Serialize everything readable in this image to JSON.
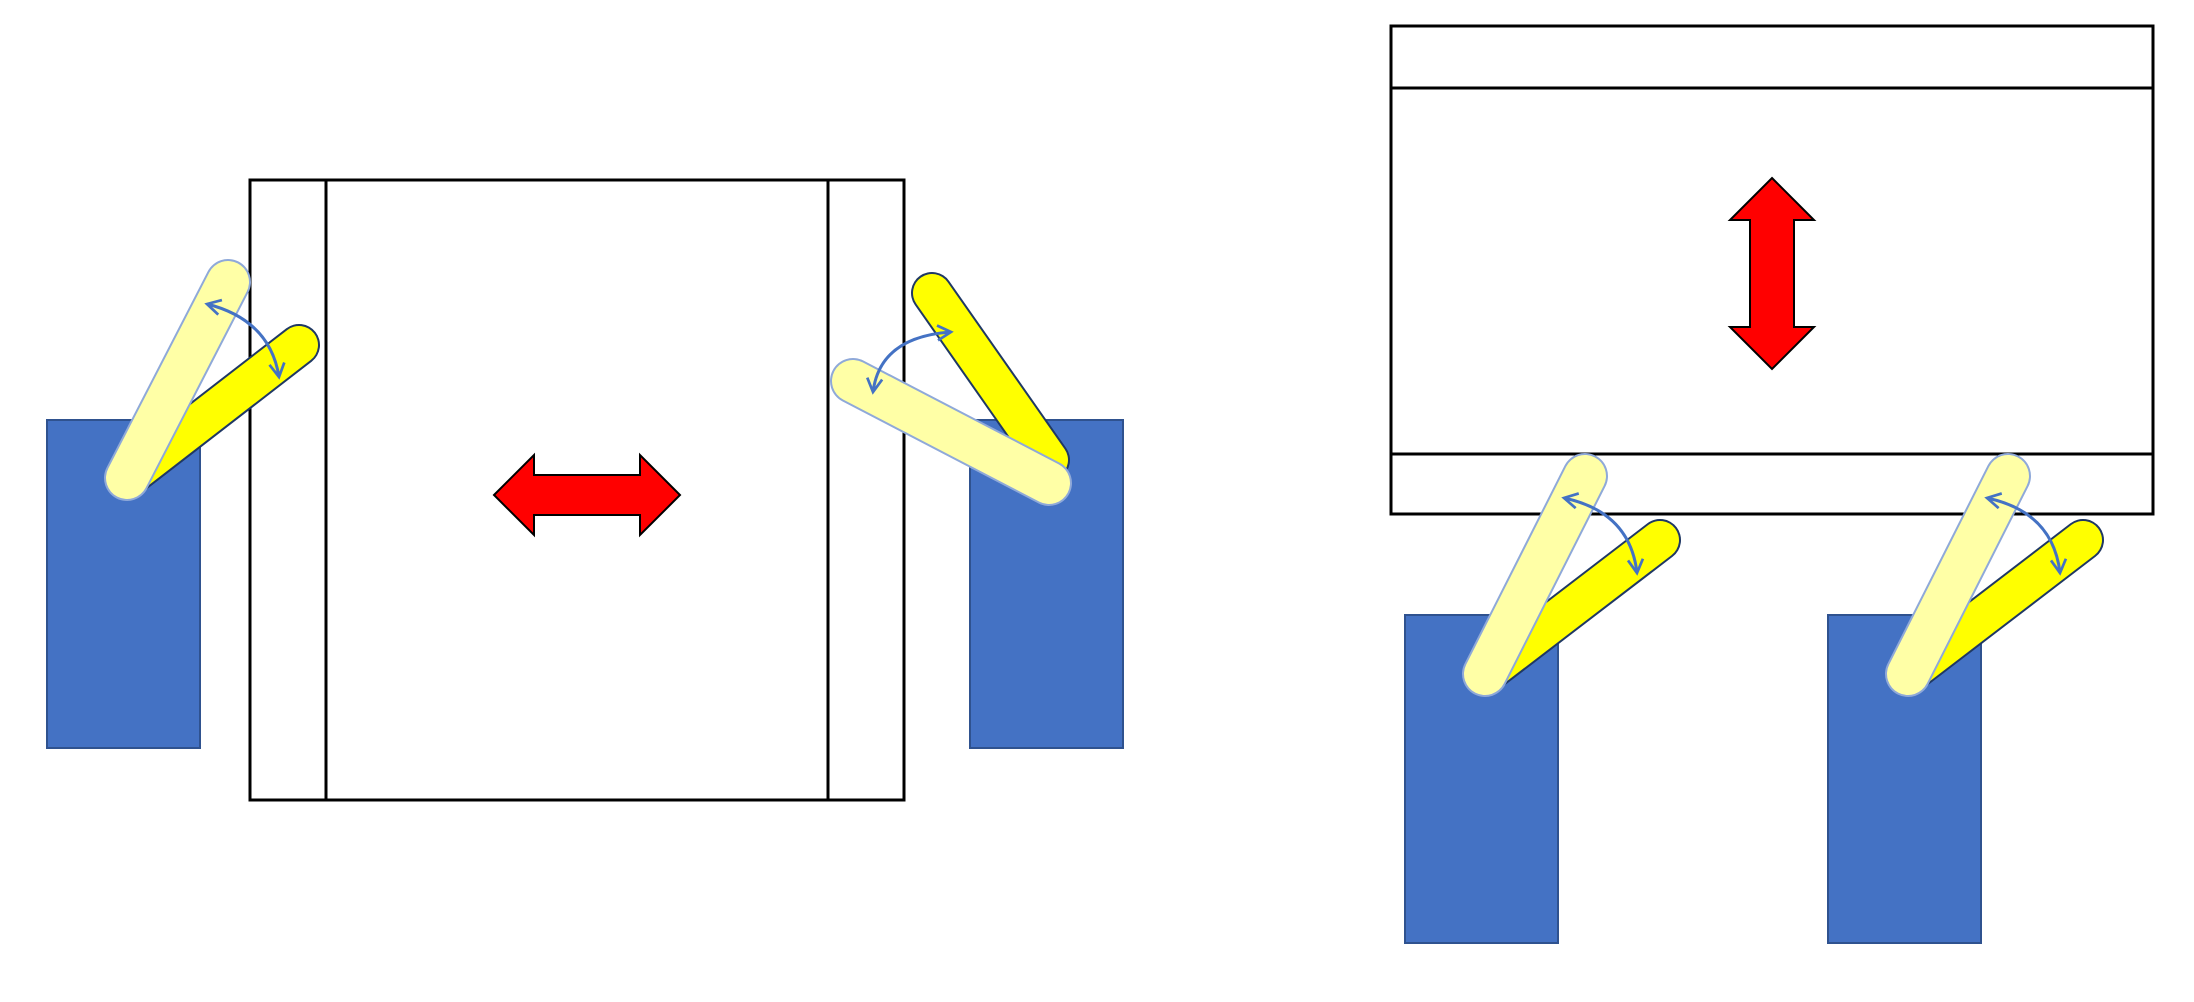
{
  "colors": {
    "background": "#ffffff",
    "outline": "#000000",
    "base_block": "#4472c4",
    "base_block_stroke": "#2f528f",
    "arm_active": "#ffff00",
    "arm_active_stroke": "#1f3864",
    "arm_alternate": "#ffffa6",
    "arm_alternate_stroke": "#8fa9d9",
    "rotation_arrow": "#4472c4",
    "motion_arrow": "#ff0000",
    "motion_arrow_stroke": "#000000"
  },
  "panels": [
    {
      "name": "horizontal-motion-diagram",
      "motion_direction": "horizontal",
      "motion_arrow_icon": "double-headed-horizontal-arrow",
      "grippers": [
        {
          "side": "left",
          "arm_positions": [
            "open",
            "closed"
          ]
        },
        {
          "side": "right",
          "arm_positions": [
            "open",
            "closed"
          ]
        }
      ]
    },
    {
      "name": "vertical-motion-diagram",
      "motion_direction": "vertical",
      "motion_arrow_icon": "double-headed-vertical-arrow",
      "grippers": [
        {
          "side": "bottom-left",
          "arm_positions": [
            "open",
            "closed"
          ]
        },
        {
          "side": "bottom-right",
          "arm_positions": [
            "open",
            "closed"
          ]
        }
      ]
    }
  ]
}
